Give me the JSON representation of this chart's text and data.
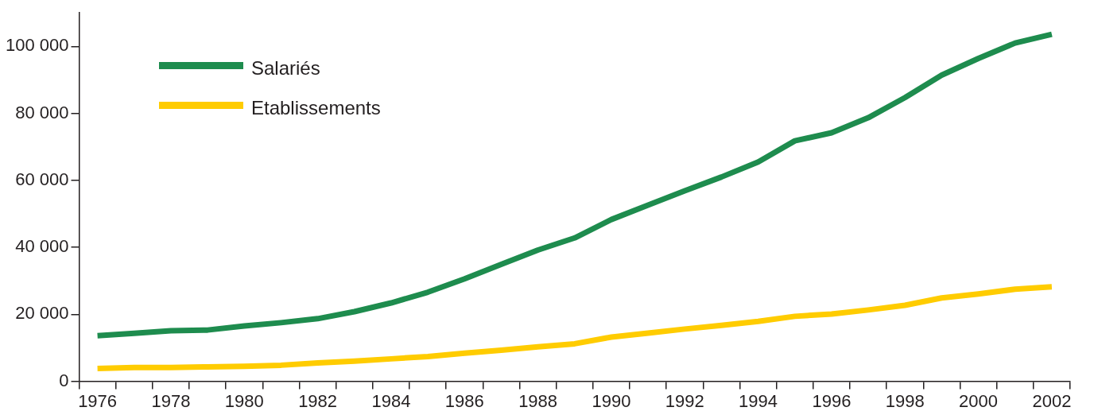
{
  "chart_data": {
    "type": "line",
    "categories": [
      "1976",
      null,
      "1978",
      null,
      "1980",
      null,
      "1982",
      null,
      "1984",
      null,
      "1986",
      null,
      "1988",
      null,
      "1990",
      null,
      "1992",
      null,
      "1994",
      null,
      "1996",
      null,
      "1998",
      null,
      "2000",
      null,
      "2002"
    ],
    "series": [
      {
        "name": "Salariés",
        "color": "#1e8c4e",
        "values": [
          13600,
          14300,
          15100,
          15300,
          16500,
          17500,
          18700,
          20800,
          23400,
          26600,
          30600,
          34900,
          39200,
          42800,
          48300,
          52600,
          56900,
          61000,
          65500,
          71800,
          74200,
          78700,
          84700,
          91400,
          96400,
          101000,
          103600
        ]
      },
      {
        "name": "Etablissements",
        "color": "#ffcc00",
        "values": [
          3800,
          4100,
          4100,
          4300,
          4500,
          4800,
          5500,
          6000,
          6700,
          7400,
          8400,
          9300,
          10300,
          11200,
          13200,
          14400,
          15600,
          16700,
          17900,
          19400,
          20100,
          21300,
          22700,
          24900,
          26100,
          27500,
          28200
        ]
      }
    ],
    "ylim": [
      0,
      110000
    ],
    "yticks": [
      {
        "value": 0,
        "label": "0"
      },
      {
        "value": 20000,
        "label": "20 000"
      },
      {
        "value": 40000,
        "label": "40 000"
      },
      {
        "value": 60000,
        "label": "60 000"
      },
      {
        "value": 80000,
        "label": "80 000"
      },
      {
        "value": 100000,
        "label": "100 000"
      }
    ],
    "grid": false,
    "legend": "top left",
    "marker": "none",
    "line_style": "solid"
  }
}
